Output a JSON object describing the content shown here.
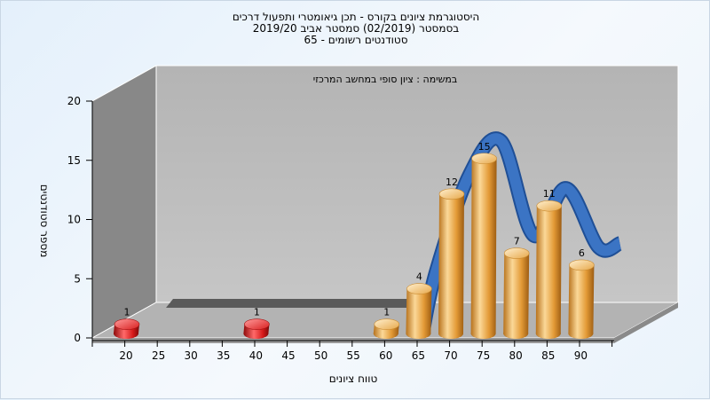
{
  "chart_data": {
    "type": "bar",
    "title_lines": [
      "היסטוגרמת ציונים בקורס - תכן גיאומטרי ותפעול דרכים",
      "בסמסטר  (02/2019)  סמסטר אביב 2019/20",
      "סטודנטים רשומים - 65"
    ],
    "annotation": "במשימה : ציון סופי במחשב המרכזי",
    "xlabel": "טווח ציונים",
    "ylabel": "מספר סטודנטים",
    "x_tick_labels": [
      "20",
      "25",
      "30",
      "35",
      "40",
      "45",
      "50",
      "55",
      "60",
      "65",
      "70",
      "75",
      "80",
      "85",
      "90"
    ],
    "y_tick_labels": [
      "0",
      "5",
      "10",
      "15",
      "20"
    ],
    "ylim": [
      0,
      20
    ],
    "grid": false,
    "bars": [
      {
        "x": 20,
        "value": 1,
        "label": "1",
        "color": "#d11f1f"
      },
      {
        "x": 40,
        "value": 1,
        "label": "1",
        "color": "#d11f1f"
      },
      {
        "x": 60,
        "value": 1,
        "label": "1",
        "color": "#e8a53c"
      },
      {
        "x": 65,
        "value": 4,
        "label": "4",
        "color": "#e8a53c"
      },
      {
        "x": 70,
        "value": 12,
        "label": "12",
        "color": "#e8a53c"
      },
      {
        "x": 75,
        "value": 15,
        "label": "15",
        "color": "#e8a53c"
      },
      {
        "x": 80,
        "value": 7,
        "label": "7",
        "color": "#e8a53c"
      },
      {
        "x": 85,
        "value": 11,
        "label": "11",
        "color": "#e8a53c"
      },
      {
        "x": 90,
        "value": 6,
        "label": "6",
        "color": "#e8a53c"
      }
    ],
    "curve_color": "#3b74c4"
  }
}
